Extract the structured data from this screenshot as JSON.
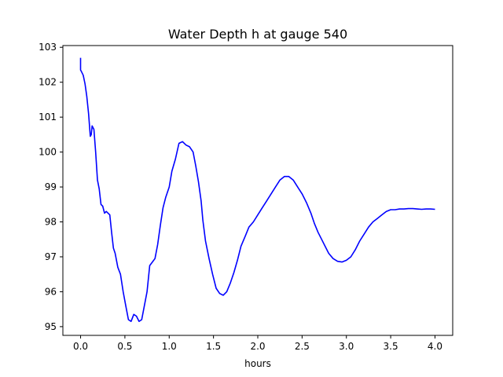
{
  "chart_data": {
    "type": "line",
    "title": "Water Depth h at gauge 540",
    "xlabel": "hours",
    "ylabel": "",
    "xlim": [
      -0.2,
      4.2
    ],
    "ylim": [
      94.75,
      103.05
    ],
    "x_ticks": [
      0.0,
      0.5,
      1.0,
      1.5,
      2.0,
      2.5,
      3.0,
      3.5,
      4.0
    ],
    "x_tick_labels": [
      "0.0",
      "0.5",
      "1.0",
      "1.5",
      "2.0",
      "2.5",
      "3.0",
      "3.5",
      "4.0"
    ],
    "y_ticks": [
      95,
      96,
      97,
      98,
      99,
      100,
      101,
      102,
      103
    ],
    "y_tick_labels": [
      "95",
      "96",
      "97",
      "98",
      "99",
      "100",
      "101",
      "102",
      "103"
    ],
    "grid": false,
    "series": [
      {
        "color": "#0000ff",
        "x": [
          0.0,
          0.0,
          0.01,
          0.03,
          0.05,
          0.07,
          0.09,
          0.11,
          0.12,
          0.13,
          0.15,
          0.17,
          0.19,
          0.21,
          0.23,
          0.25,
          0.27,
          0.29,
          0.31,
          0.33,
          0.35,
          0.37,
          0.39,
          0.42,
          0.45,
          0.48,
          0.51,
          0.54,
          0.57,
          0.6,
          0.63,
          0.66,
          0.69,
          0.72,
          0.75,
          0.78,
          0.81,
          0.84,
          0.87,
          0.9,
          0.93,
          0.96,
          1.0,
          1.03,
          1.07,
          1.11,
          1.15,
          1.19,
          1.23,
          1.27,
          1.3,
          1.33,
          1.36,
          1.38,
          1.41,
          1.45,
          1.49,
          1.53,
          1.57,
          1.61,
          1.65,
          1.69,
          1.73,
          1.77,
          1.81,
          1.86,
          1.9,
          1.95,
          2.0,
          2.05,
          2.1,
          2.15,
          2.2,
          2.25,
          2.3,
          2.35,
          2.4,
          2.45,
          2.5,
          2.55,
          2.6,
          2.64,
          2.68,
          2.72,
          2.76,
          2.8,
          2.85,
          2.9,
          2.95,
          3.0,
          3.05,
          3.1,
          3.15,
          3.2,
          3.25,
          3.3,
          3.35,
          3.4,
          3.45,
          3.5,
          3.55,
          3.6,
          3.65,
          3.7,
          3.75,
          3.8,
          3.85,
          3.9,
          3.95,
          4.0
        ],
        "y": [
          102.7,
          102.35,
          102.3,
          102.2,
          101.95,
          101.6,
          101.1,
          100.45,
          100.5,
          100.75,
          100.65,
          100.0,
          99.2,
          98.95,
          98.5,
          98.45,
          98.25,
          98.3,
          98.25,
          98.2,
          97.7,
          97.25,
          97.1,
          96.7,
          96.5,
          96.0,
          95.6,
          95.2,
          95.15,
          95.35,
          95.3,
          95.15,
          95.2,
          95.6,
          96.0,
          96.75,
          96.85,
          96.95,
          97.35,
          97.9,
          98.4,
          98.7,
          99.0,
          99.45,
          99.8,
          100.25,
          100.3,
          100.2,
          100.15,
          100.0,
          99.6,
          99.15,
          98.6,
          98.05,
          97.45,
          96.95,
          96.5,
          96.1,
          95.95,
          95.9,
          96.0,
          96.25,
          96.55,
          96.9,
          97.3,
          97.6,
          97.85,
          98.0,
          98.2,
          98.4,
          98.6,
          98.8,
          99.0,
          99.2,
          99.3,
          99.3,
          99.2,
          99.0,
          98.8,
          98.55,
          98.25,
          97.95,
          97.7,
          97.5,
          97.3,
          97.1,
          96.95,
          96.87,
          96.85,
          96.9,
          97.0,
          97.2,
          97.45,
          97.65,
          97.85,
          98.0,
          98.1,
          98.2,
          98.3,
          98.35,
          98.35,
          98.37,
          98.37,
          98.38,
          98.38,
          98.37,
          98.36,
          98.37,
          98.37,
          98.36
        ]
      }
    ]
  }
}
